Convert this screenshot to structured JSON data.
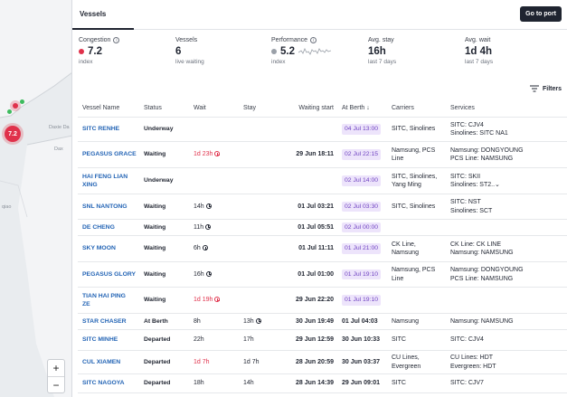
{
  "map": {
    "labels": [
      "Daxie Da",
      "Dax",
      "qiao"
    ],
    "cluster_count": "7.2",
    "zoom_in": "+",
    "zoom_out": "−"
  },
  "tabs": {
    "active": "Vessels"
  },
  "goto_port_label": "Go to port",
  "metrics": {
    "congestion": {
      "label": "Congestion",
      "value": "7.2",
      "sub": "index",
      "dot_color": "#e0314b"
    },
    "vessels": {
      "label": "Vessels",
      "value": "6",
      "sub": "live waiting"
    },
    "performance": {
      "label": "Performance",
      "value": "5.2",
      "sub": "index",
      "dot_color": "#9aa0a8"
    },
    "avg_stay": {
      "label": "Avg. stay",
      "value": "16h",
      "sub": "last 7 days"
    },
    "avg_wait": {
      "label": "Avg. wait",
      "value": "1d 4h",
      "sub": "last 7 days"
    }
  },
  "filters_label": "Filters",
  "columns": [
    "Vessel Name",
    "Status",
    "Wait",
    "Stay",
    "Waiting start",
    "At Berth",
    "Carriers",
    "Services"
  ],
  "rows": [
    {
      "name": [
        "SITC RENHE"
      ],
      "status": "Underway",
      "wait": "",
      "wait_red": false,
      "wait_clock": false,
      "stay": "",
      "stay_clock": false,
      "waiting_start": "",
      "berth": "04 Jul 13:00",
      "berth_pill": true,
      "carriers": [
        "SITC, Sinolines"
      ],
      "services": [
        "SITC: CJV4",
        "Sinolines: SITC NA1"
      ]
    },
    {
      "name": [
        "PEGASUS GRACE"
      ],
      "status": "Waiting",
      "wait": "1d 23h",
      "wait_red": true,
      "wait_clock": true,
      "stay": "",
      "stay_clock": false,
      "waiting_start": "29 Jun 18:11",
      "berth": "02 Jul 22:15",
      "berth_pill": true,
      "carriers": [
        "Namsung, PCS",
        "Line"
      ],
      "services": [
        "Namsung: DONGYOUNG",
        "PCS Line: NAMSUNG"
      ]
    },
    {
      "name": [
        "HAI FENG LIAN",
        "XING"
      ],
      "status": "Underway",
      "wait": "",
      "wait_red": false,
      "wait_clock": false,
      "stay": "",
      "stay_clock": false,
      "waiting_start": "",
      "berth": "02 Jul 14:00",
      "berth_pill": true,
      "carriers": [
        "SITC, Sinolines,",
        "Yang Ming"
      ],
      "services": [
        "SITC: SKII",
        "Sinolines: ST2..⌄"
      ]
    },
    {
      "name": [
        "SNL NANTONG"
      ],
      "status": "Waiting",
      "wait": "14h",
      "wait_red": false,
      "wait_clock": true,
      "stay": "",
      "stay_clock": false,
      "waiting_start": "01 Jul 03:21",
      "berth": "02 Jul 03:30",
      "berth_pill": true,
      "carriers": [
        "SITC, Sinolines"
      ],
      "services": [
        "SITC: NST",
        "Sinolines: SCT"
      ]
    },
    {
      "name": [
        "DE CHENG"
      ],
      "status": "Waiting",
      "wait": "11h",
      "wait_red": false,
      "wait_clock": true,
      "stay": "",
      "stay_clock": false,
      "waiting_start": "01 Jul 05:51",
      "berth": "02 Jul 00:00",
      "berth_pill": true,
      "carriers": [
        ""
      ],
      "services": [
        ""
      ]
    },
    {
      "name": [
        "SKY MOON"
      ],
      "status": "Waiting",
      "wait": "6h",
      "wait_red": false,
      "wait_clock": true,
      "stay": "",
      "stay_clock": false,
      "waiting_start": "01 Jul 11:11",
      "berth": "01 Jul 21:00",
      "berth_pill": true,
      "carriers": [
        "CK Line,",
        "Namsung"
      ],
      "services": [
        "CK Line: CK LINE",
        "Namsung: NAMSUNG"
      ]
    },
    {
      "name": [
        "PEGASUS GLORY"
      ],
      "status": "Waiting",
      "wait": "16h",
      "wait_red": false,
      "wait_clock": true,
      "stay": "",
      "stay_clock": false,
      "waiting_start": "01 Jul 01:00",
      "berth": "01 Jul 19:10",
      "berth_pill": true,
      "carriers": [
        "Namsung, PCS",
        "Line"
      ],
      "services": [
        "Namsung: DONGYOUNG",
        "PCS Line: NAMSUNG"
      ]
    },
    {
      "name": [
        "TIAN HAI PING",
        "ZE"
      ],
      "status": "Waiting",
      "wait": "1d 19h",
      "wait_red": true,
      "wait_clock": true,
      "stay": "",
      "stay_clock": false,
      "waiting_start": "29 Jun 22:20",
      "berth": "01 Jul 19:10",
      "berth_pill": true,
      "carriers": [
        ""
      ],
      "services": [
        ""
      ]
    },
    {
      "name": [
        "STAR CHASER"
      ],
      "status": "At Berth",
      "wait": "8h",
      "wait_red": false,
      "wait_clock": false,
      "stay": "13h",
      "stay_clock": true,
      "waiting_start": "30 Jun 19:49",
      "berth": "01 Jul 04:03",
      "berth_pill": false,
      "carriers": [
        "Namsung"
      ],
      "services": [
        "Namsung: NAMSUNG"
      ]
    },
    {
      "name": [
        "SITC MINHE"
      ],
      "status": "Departed",
      "wait": "22h",
      "wait_red": false,
      "wait_clock": false,
      "stay": "17h",
      "stay_clock": false,
      "waiting_start": "29 Jun 12:59",
      "berth": "30 Jun 10:33",
      "berth_pill": false,
      "carriers": [
        "SITC"
      ],
      "services": [
        "SITC: CJV4"
      ]
    },
    {
      "name": [
        "CUL XIAMEN"
      ],
      "status": "Departed",
      "wait": "1d 7h",
      "wait_red": true,
      "wait_clock": false,
      "stay": "1d 7h",
      "stay_clock": false,
      "waiting_start": "28 Jun 20:59",
      "berth": "30 Jun 03:37",
      "berth_pill": false,
      "carriers": [
        "CU Lines,",
        "Evergreen"
      ],
      "services": [
        "CU Lines: HDT",
        "Evergreen: HDT"
      ]
    },
    {
      "name": [
        "SITC NAGOYA"
      ],
      "status": "Departed",
      "wait": "18h",
      "wait_red": false,
      "wait_clock": false,
      "stay": "14h",
      "stay_clock": false,
      "waiting_start": "28 Jun 14:39",
      "berth": "29 Jun 09:01",
      "berth_pill": false,
      "carriers": [
        "SITC"
      ],
      "services": [
        "SITC: CJV7"
      ]
    }
  ]
}
